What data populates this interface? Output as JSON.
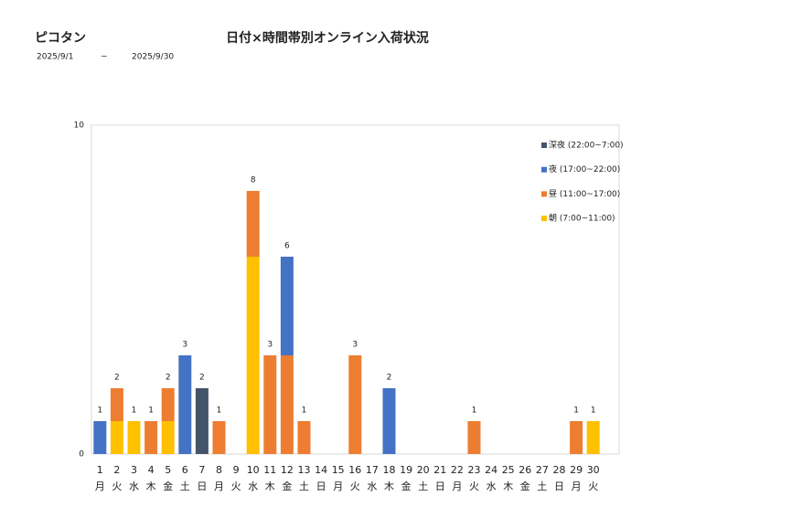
{
  "header": {
    "shop": "ピコタン",
    "date_from": "2025/9/1",
    "date_sep": "~",
    "date_to": "2025/9/30"
  },
  "chart_data": {
    "type": "stacked-bar",
    "title": "日付×時間帯別オンライン入荷状況",
    "categories": [
      "1",
      "2",
      "3",
      "4",
      "5",
      "6",
      "7",
      "8",
      "9",
      "10",
      "11",
      "12",
      "13",
      "14",
      "15",
      "16",
      "17",
      "18",
      "19",
      "20",
      "21",
      "22",
      "23",
      "24",
      "25",
      "26",
      "27",
      "28",
      "29",
      "30"
    ],
    "weekdays": [
      "月",
      "火",
      "水",
      "木",
      "金",
      "土",
      "日",
      "月",
      "火",
      "水",
      "木",
      "金",
      "土",
      "日",
      "月",
      "火",
      "水",
      "木",
      "金",
      "土",
      "日",
      "月",
      "火",
      "水",
      "木",
      "金",
      "土",
      "日",
      "月",
      "火"
    ],
    "series": [
      {
        "name": "朝 (7:00~11:00)",
        "color": "#ffc000",
        "values": [
          0,
          1,
          1,
          0,
          1,
          0,
          0,
          0,
          0,
          6,
          0,
          0,
          0,
          0,
          0,
          0,
          0,
          0,
          0,
          0,
          0,
          0,
          0,
          0,
          0,
          0,
          0,
          0,
          0,
          1
        ]
      },
      {
        "name": "昼 (11:00~17:00)",
        "color": "#ed7d31",
        "values": [
          0,
          1,
          0,
          1,
          1,
          0,
          0,
          1,
          0,
          2,
          3,
          3,
          1,
          0,
          0,
          3,
          0,
          0,
          0,
          0,
          0,
          0,
          1,
          0,
          0,
          0,
          0,
          0,
          1,
          0
        ]
      },
      {
        "name": "夜 (17:00~22:00)",
        "color": "#4472c4",
        "values": [
          1,
          0,
          0,
          0,
          0,
          3,
          0,
          0,
          0,
          0,
          0,
          3,
          0,
          0,
          0,
          0,
          0,
          2,
          0,
          0,
          0,
          0,
          0,
          0,
          0,
          0,
          0,
          0,
          0,
          0
        ]
      },
      {
        "name": "深夜 (22:00~7:00)",
        "color": "#44546a",
        "values": [
          0,
          0,
          0,
          0,
          0,
          0,
          2,
          0,
          0,
          0,
          0,
          0,
          0,
          0,
          0,
          0,
          0,
          0,
          0,
          0,
          0,
          0,
          0,
          0,
          0,
          0,
          0,
          0,
          0,
          0
        ]
      }
    ],
    "totals": [
      1,
      2,
      1,
      1,
      2,
      3,
      2,
      1,
      null,
      8,
      3,
      6,
      1,
      null,
      null,
      3,
      null,
      2,
      null,
      null,
      null,
      null,
      1,
      null,
      null,
      null,
      null,
      null,
      1,
      1
    ],
    "ylim": [
      0,
      10
    ],
    "yticks": [
      0,
      10
    ],
    "grid": false,
    "legend": "top-right"
  }
}
